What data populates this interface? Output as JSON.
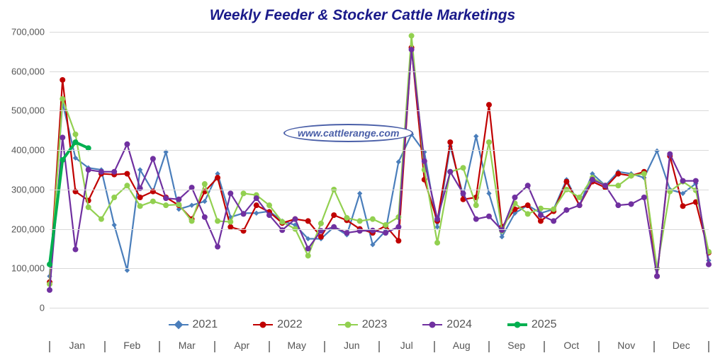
{
  "chart": {
    "type": "line",
    "title": "Weekly Feeder & Stocker Cattle Marketings",
    "title_color": "#1a1a8a",
    "title_fontsize": 21,
    "background_color": "#ffffff",
    "grid_color": "#d9d9d9",
    "watermark": "www.cattlerange.com",
    "ylim": [
      0,
      700000
    ],
    "ytick_step": 100000,
    "y_ticks": [
      "0",
      "100,000",
      "200,000",
      "300,000",
      "400,000",
      "500,000",
      "600,000",
      "700,000"
    ],
    "months": [
      "Jan",
      "Feb",
      "Mar",
      "Apr",
      "May",
      "Jun",
      "Jul",
      "Aug",
      "Sep",
      "Oct",
      "Nov",
      "Dec"
    ],
    "weeks_per_year": 52,
    "marker_size": 4,
    "line_width": 2.2,
    "series": [
      {
        "name": "2021",
        "color": "#4a7ebb",
        "marker": "diamond",
        "values": [
          80000,
          520000,
          380000,
          355000,
          350000,
          210000,
          95000,
          350000,
          295000,
          395000,
          250000,
          260000,
          270000,
          340000,
          230000,
          240000,
          240000,
          245000,
          220000,
          210000,
          175000,
          175000,
          205000,
          185000,
          290000,
          160000,
          195000,
          370000,
          440000,
          395000,
          205000,
          410000,
          285000,
          435000,
          290000,
          180000,
          240000,
          260000,
          240000,
          250000,
          325000,
          260000,
          340000,
          310000,
          345000,
          340000,
          330000,
          398000,
          300000,
          290000,
          315000,
          120000
        ]
      },
      {
        "name": "2022",
        "color": "#c00000",
        "marker": "circle",
        "values": [
          65000,
          578000,
          295000,
          272000,
          340000,
          338000,
          340000,
          280000,
          295000,
          280000,
          260000,
          225000,
          295000,
          330000,
          205000,
          195000,
          260000,
          243000,
          215000,
          225000,
          220000,
          180000,
          235000,
          222000,
          200000,
          190000,
          208000,
          170000,
          660000,
          325000,
          220000,
          420000,
          275000,
          280000,
          515000,
          205000,
          250000,
          260000,
          220000,
          245000,
          320000,
          260000,
          320000,
          305000,
          340000,
          335000,
          345000,
          80000,
          385000,
          258000,
          268000,
          140000
        ]
      },
      {
        "name": "2023",
        "color": "#92d050",
        "marker": "circle",
        "values": [
          60000,
          530000,
          440000,
          255000,
          225000,
          280000,
          310000,
          258000,
          270000,
          260000,
          262000,
          220000,
          314000,
          220000,
          218000,
          290000,
          286000,
          260000,
          218000,
          200000,
          132000,
          214000,
          300000,
          228000,
          220000,
          225000,
          210000,
          230000,
          690000,
          350000,
          165000,
          345000,
          355000,
          260000,
          420000,
          195000,
          265000,
          238000,
          252000,
          250000,
          300000,
          280000,
          330000,
          310000,
          310000,
          335000,
          340000,
          100000,
          295000,
          320000,
          298000,
          142000
        ]
      },
      {
        "name": "2024",
        "color": "#7030a0",
        "marker": "circle",
        "values": [
          45000,
          432000,
          148000,
          350000,
          345000,
          345000,
          415000,
          303000,
          378000,
          278000,
          275000,
          305000,
          230000,
          155000,
          290000,
          238000,
          278000,
          235000,
          197000,
          225000,
          150000,
          195000,
          205000,
          190000,
          195000,
          196000,
          190000,
          205000,
          655000,
          372000,
          225000,
          345000,
          290000,
          225000,
          232000,
          197000,
          280000,
          310000,
          235000,
          220000,
          248000,
          260000,
          325000,
          310000,
          260000,
          263000,
          280000,
          80000,
          390000,
          322000,
          322000,
          110000
        ]
      },
      {
        "name": "2025",
        "color": "#00b050",
        "marker": "circle",
        "line_width": 4,
        "values": [
          110000,
          375000,
          420000,
          405000
        ]
      }
    ],
    "legend_position": "bottom"
  }
}
